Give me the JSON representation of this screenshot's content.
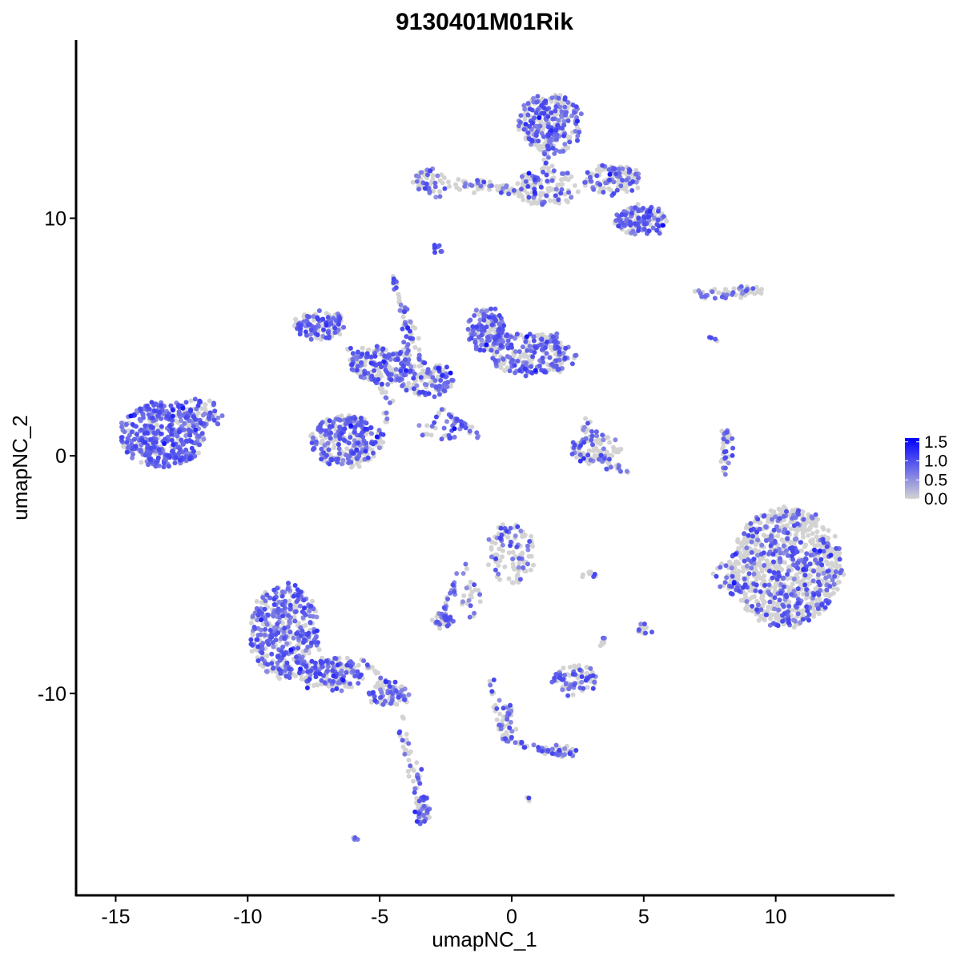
{
  "chart_data": {
    "type": "scatter",
    "title": "9130401M01Rik",
    "xlabel": "umapNC_1",
    "ylabel": "umapNC_2",
    "xlim": [
      -16.5,
      14.5
    ],
    "ylim": [
      -18.5,
      17.5
    ],
    "x_ticks": [
      -15,
      -10,
      -5,
      0,
      5,
      10
    ],
    "x_tick_labels": [
      "-15",
      "-10",
      "-5",
      "0",
      "5",
      "10"
    ],
    "y_ticks": [
      -10,
      0,
      10
    ],
    "y_tick_labels": [
      "-10",
      "0",
      "10"
    ],
    "grid": false,
    "legend": {
      "type": "colorbar",
      "placement": "right",
      "breaks": [
        0.0,
        0.5,
        1.0,
        1.5
      ],
      "labels": [
        "0.0",
        "0.5",
        "1.0",
        "1.5"
      ],
      "min": 0.0,
      "max": 1.6
    },
    "colors": {
      "low": "#d3d3d3",
      "high": "#0000ff",
      "axis": "#000000"
    },
    "clusters": [
      {
        "cx": -13.2,
        "cy": 0.9,
        "rx": 1.6,
        "ry": 1.4,
        "n": 380,
        "expr_frac": 0.75
      },
      {
        "cx": -11.8,
        "cy": 1.7,
        "rx": 0.8,
        "ry": 0.7,
        "n": 60,
        "expr_frac": 0.6
      },
      {
        "cx": -6.3,
        "cy": 0.6,
        "rx": 1.3,
        "ry": 1.1,
        "n": 260,
        "expr_frac": 0.6
      },
      {
        "cx": -7.3,
        "cy": 5.5,
        "rx": 0.9,
        "ry": 0.6,
        "n": 110,
        "expr_frac": 0.65
      },
      {
        "cx": -5.0,
        "cy": 3.8,
        "rx": 1.2,
        "ry": 0.8,
        "n": 180,
        "expr_frac": 0.55
      },
      {
        "cx": -3.2,
        "cy": 3.2,
        "rx": 1.0,
        "ry": 0.7,
        "n": 120,
        "expr_frac": 0.5
      },
      {
        "cx": -1.0,
        "cy": 5.3,
        "rx": 0.7,
        "ry": 0.9,
        "n": 140,
        "expr_frac": 0.65
      },
      {
        "cx": 0.8,
        "cy": 4.2,
        "rx": 1.6,
        "ry": 0.8,
        "n": 200,
        "expr_frac": 0.6
      },
      {
        "cx": -4.5,
        "cy": 7.3,
        "rx": 0.2,
        "ry": 0.3,
        "n": 12,
        "expr_frac": 0.6
      },
      {
        "cx": -4.0,
        "cy": 5.0,
        "rx": 0.25,
        "ry": 1.2,
        "n": 30,
        "expr_frac": 0.5
      },
      {
        "cx": -2.6,
        "cy": 1.2,
        "rx": 1.0,
        "ry": 0.6,
        "n": 30,
        "expr_frac": 0.6
      },
      {
        "cx": -3.1,
        "cy": 11.4,
        "rx": 0.6,
        "ry": 0.7,
        "n": 50,
        "expr_frac": 0.45
      },
      {
        "cx": -1.2,
        "cy": 11.3,
        "rx": 1.2,
        "ry": 0.3,
        "n": 25,
        "expr_frac": 0.35
      },
      {
        "cx": 1.5,
        "cy": 14.0,
        "rx": 1.2,
        "ry": 1.3,
        "n": 260,
        "expr_frac": 0.5
      },
      {
        "cx": 1.3,
        "cy": 11.3,
        "rx": 1.3,
        "ry": 0.7,
        "n": 120,
        "expr_frac": 0.3
      },
      {
        "cx": 3.8,
        "cy": 11.6,
        "rx": 1.1,
        "ry": 0.6,
        "n": 120,
        "expr_frac": 0.45
      },
      {
        "cx": 4.9,
        "cy": 9.9,
        "rx": 1.0,
        "ry": 0.6,
        "n": 140,
        "expr_frac": 0.55
      },
      {
        "cx": -2.8,
        "cy": 8.7,
        "rx": 0.2,
        "ry": 0.2,
        "n": 10,
        "expr_frac": 0.5
      },
      {
        "cx": 8.7,
        "cy": 6.9,
        "rx": 0.8,
        "ry": 0.2,
        "n": 40,
        "expr_frac": 0.4
      },
      {
        "cx": 7.4,
        "cy": 6.8,
        "rx": 0.6,
        "ry": 0.2,
        "n": 20,
        "expr_frac": 0.4
      },
      {
        "cx": 3.2,
        "cy": 0.3,
        "rx": 0.9,
        "ry": 0.6,
        "n": 90,
        "expr_frac": 0.35
      },
      {
        "cx": 2.9,
        "cy": 1.2,
        "rx": 0.25,
        "ry": 0.5,
        "n": 15,
        "expr_frac": 0.4
      },
      {
        "cx": 8.2,
        "cy": 0.2,
        "rx": 0.25,
        "ry": 1.0,
        "n": 20,
        "expr_frac": 0.45
      },
      {
        "cx": 10.4,
        "cy": -4.7,
        "rx": 2.1,
        "ry": 2.5,
        "n": 950,
        "expr_frac": 0.28
      },
      {
        "cx": 8.2,
        "cy": -5.1,
        "rx": 0.5,
        "ry": 0.8,
        "n": 40,
        "expr_frac": 0.35
      },
      {
        "cx": 0.0,
        "cy": -4.1,
        "rx": 0.9,
        "ry": 1.3,
        "n": 110,
        "expr_frac": 0.3
      },
      {
        "cx": -1.5,
        "cy": -6.0,
        "rx": 0.4,
        "ry": 0.8,
        "n": 25,
        "expr_frac": 0.3
      },
      {
        "cx": -2.6,
        "cy": -6.9,
        "rx": 0.4,
        "ry": 0.3,
        "n": 35,
        "expr_frac": 0.55
      },
      {
        "cx": 2.4,
        "cy": -9.4,
        "rx": 0.8,
        "ry": 0.6,
        "n": 80,
        "expr_frac": 0.5
      },
      {
        "cx": 2.9,
        "cy": -5.0,
        "rx": 0.3,
        "ry": 0.1,
        "n": 8,
        "expr_frac": 0.4
      },
      {
        "cx": 5.0,
        "cy": -7.3,
        "rx": 0.3,
        "ry": 0.3,
        "n": 15,
        "expr_frac": 0.4
      },
      {
        "cx": 3.4,
        "cy": -7.8,
        "rx": 0.2,
        "ry": 0.3,
        "n": 6,
        "expr_frac": 0.4
      },
      {
        "cx": -8.6,
        "cy": -7.4,
        "rx": 1.3,
        "ry": 2.0,
        "n": 420,
        "expr_frac": 0.65
      },
      {
        "cx": -6.8,
        "cy": -9.2,
        "rx": 1.2,
        "ry": 0.7,
        "n": 160,
        "expr_frac": 0.55
      },
      {
        "cx": -4.7,
        "cy": -10.0,
        "rx": 0.8,
        "ry": 0.5,
        "n": 70,
        "expr_frac": 0.45
      },
      {
        "cx": -3.4,
        "cy": -14.9,
        "rx": 0.3,
        "ry": 0.6,
        "n": 50,
        "expr_frac": 0.55
      },
      {
        "cx": -3.6,
        "cy": -13.5,
        "rx": 0.15,
        "ry": 0.6,
        "n": 12,
        "expr_frac": 0.5
      },
      {
        "cx": -0.2,
        "cy": -11.3,
        "rx": 0.3,
        "ry": 0.9,
        "n": 30,
        "expr_frac": 0.6
      },
      {
        "cx": 1.9,
        "cy": -12.4,
        "rx": 0.8,
        "ry": 0.2,
        "n": 25,
        "expr_frac": 0.45
      },
      {
        "cx": -6.0,
        "cy": -16.1,
        "rx": 0.15,
        "ry": 0.1,
        "n": 4,
        "expr_frac": 0.5
      },
      {
        "cx": 0.6,
        "cy": -14.5,
        "rx": 0.1,
        "ry": 0.1,
        "n": 3,
        "expr_frac": 0.5
      }
    ],
    "streaks": [
      {
        "from": [
          -4.3,
          6.8
        ],
        "to": [
          -3.3,
          3.5
        ],
        "n": 30,
        "expr_frac": 0.55
      },
      {
        "from": [
          -2.8,
          2.0
        ],
        "to": [
          -1.2,
          0.8
        ],
        "n": 25,
        "expr_frac": 0.5
      },
      {
        "from": [
          -4.6,
          2.5
        ],
        "to": [
          -5.0,
          0.5
        ],
        "n": 20,
        "expr_frac": 0.4
      },
      {
        "from": [
          -6.1,
          4.4
        ],
        "to": [
          -4.5,
          2.2
        ],
        "n": 30,
        "expr_frac": 0.45
      },
      {
        "from": [
          -2.4,
          11.6
        ],
        "to": [
          0.3,
          11.0
        ],
        "n": 25,
        "expr_frac": 0.4
      },
      {
        "from": [
          1.2,
          12.0
        ],
        "to": [
          1.6,
          14.0
        ],
        "n": 30,
        "expr_frac": 0.35
      },
      {
        "from": [
          -1.8,
          -4.5
        ],
        "to": [
          -2.8,
          -7.2
        ],
        "n": 25,
        "expr_frac": 0.5
      },
      {
        "from": [
          -0.8,
          -9.5
        ],
        "to": [
          -0.3,
          -12.0
        ],
        "n": 25,
        "expr_frac": 0.55
      },
      {
        "from": [
          0.0,
          -12.0
        ],
        "to": [
          2.6,
          -12.8
        ],
        "n": 30,
        "expr_frac": 0.5
      },
      {
        "from": [
          -5.8,
          -8.5
        ],
        "to": [
          -4.0,
          -10.3
        ],
        "n": 30,
        "expr_frac": 0.5
      },
      {
        "from": [
          -4.2,
          -11.0
        ],
        "to": [
          -3.6,
          -14.5
        ],
        "n": 25,
        "expr_frac": 0.4
      },
      {
        "from": [
          8.1,
          1.2
        ],
        "to": [
          8.0,
          -0.9
        ],
        "n": 15,
        "expr_frac": 0.45
      },
      {
        "from": [
          7.5,
          5.0
        ],
        "to": [
          7.8,
          4.8
        ],
        "n": 4,
        "expr_frac": 0.5
      },
      {
        "from": [
          2.6,
          0.0
        ],
        "to": [
          4.3,
          -0.6
        ],
        "n": 30,
        "expr_frac": 0.35
      },
      {
        "from": [
          -13.9,
          0.2
        ],
        "to": [
          -12.1,
          -0.1
        ],
        "n": 40,
        "expr_frac": 0.6
      },
      {
        "from": [
          -0.8,
          5.0
        ],
        "to": [
          1.8,
          5.0
        ],
        "n": 40,
        "expr_frac": 0.55
      }
    ]
  }
}
